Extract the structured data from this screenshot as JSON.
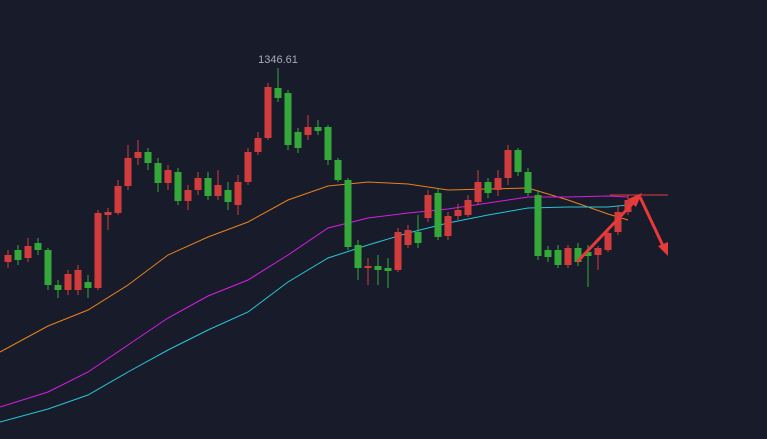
{
  "chart_data": {
    "type": "candlestick",
    "up_color": "#d23c3c",
    "down_color": "#35a83a",
    "open": [
      1269.0,
      1273.8,
      1270.6,
      1276.6,
      1273.8,
      1259.8,
      1257.8,
      1257.8,
      1261.0,
      1258.6,
      1287.8,
      1288.6,
      1299.4,
      1310.6,
      1313.0,
      1308.6,
      1300.6,
      1305.0,
      1293.4,
      1297.8,
      1302.6,
      1295.4,
      1297.8,
      1291.8,
      1301.0,
      1313.0,
      1318.6,
      1338.6,
      1336.6,
      1321.0,
      1319.8,
      1323.0,
      1323.0,
      1309.8,
      1301.8,
      1275.8,
      1266.6,
      1267.4,
      1266.6,
      1265.8,
      1275.8,
      1281.0,
      1286.6,
      1296.6,
      1279.4,
      1287.4,
      1287.8,
      1293.0,
      1301.0,
      1297.8,
      1302.6,
      1313.8,
      1305.0,
      1295.8,
      1273.8,
      1273.8,
      1267.8,
      1274.6,
      1273.0,
      1271.8,
      1273.8,
      1281.0,
      1289.0
    ],
    "close": [
      1271.8,
      1269.8,
      1275.4,
      1273.8,
      1259.8,
      1257.8,
      1264.2,
      1265.8,
      1258.6,
      1288.6,
      1289.0,
      1299.4,
      1310.6,
      1313.0,
      1308.6,
      1300.6,
      1305.8,
      1293.4,
      1297.8,
      1302.6,
      1295.4,
      1299.8,
      1293.0,
      1301.0,
      1313.0,
      1318.6,
      1339.0,
      1334.6,
      1315.8,
      1314.6,
      1323.0,
      1321.4,
      1309.8,
      1301.8,
      1275.0,
      1266.6,
      1267.4,
      1265.8,
      1265.4,
      1281.0,
      1281.8,
      1276.6,
      1295.8,
      1279.0,
      1287.4,
      1289.8,
      1293.8,
      1301.0,
      1296.6,
      1302.6,
      1313.8,
      1305.0,
      1296.6,
      1271.4,
      1271.0,
      1267.8,
      1274.6,
      1269.0,
      1271.4,
      1274.6,
      1280.6,
      1289.0,
      1293.8
    ],
    "high": [
      1273.8,
      1275.8,
      1278.6,
      1278.6,
      1274.6,
      1261.8,
      1265.8,
      1267.8,
      1263.8,
      1289.8,
      1290.6,
      1301.8,
      1315.8,
      1317.8,
      1314.6,
      1310.6,
      1307.8,
      1306.6,
      1299.8,
      1305.0,
      1305.0,
      1305.8,
      1301.0,
      1303.8,
      1314.6,
      1321.0,
      1340.6,
      1346.61,
      1337.8,
      1322.6,
      1327.8,
      1325.8,
      1323.8,
      1310.6,
      1302.6,
      1277.8,
      1270.6,
      1271.8,
      1270.6,
      1282.6,
      1283.8,
      1287.8,
      1297.8,
      1298.6,
      1289.0,
      1292.2,
      1295.8,
      1305.8,
      1302.6,
      1305.8,
      1315.8,
      1314.6,
      1306.6,
      1297.8,
      1275.4,
      1275.8,
      1275.8,
      1276.6,
      1275.8,
      1275.4,
      1282.6,
      1291.8,
      1295.8
    ],
    "low": [
      1266.6,
      1267.8,
      1269.0,
      1271.8,
      1257.8,
      1254.6,
      1255.8,
      1255.8,
      1254.6,
      1257.8,
      1281.8,
      1287.8,
      1297.8,
      1307.8,
      1305.8,
      1297.0,
      1297.8,
      1291.8,
      1289.8,
      1295.8,
      1293.8,
      1293.8,
      1289.8,
      1287.8,
      1299.8,
      1311.8,
      1317.8,
      1333.0,
      1313.8,
      1312.6,
      1317.8,
      1319.8,
      1307.8,
      1301.0,
      1273.8,
      1261.8,
      1259.8,
      1259.8,
      1258.6,
      1265.0,
      1274.6,
      1274.6,
      1285.0,
      1277.8,
      1277.8,
      1285.8,
      1287.0,
      1291.8,
      1294.6,
      1295.4,
      1299.8,
      1303.4,
      1295.4,
      1269.8,
      1269.0,
      1266.6,
      1266.6,
      1267.4,
      1259.0,
      1265.8,
      1273.0,
      1279.8,
      1287.8
    ],
    "lines": [
      {
        "color": "#e8821e",
        "x": [
          0,
          4,
          8,
          12,
          16,
          20,
          24,
          28,
          32,
          36,
          40,
          44,
          48,
          52,
          56,
          60,
          62
        ],
        "values": [
          1233.0,
          1243.4,
          1249.8,
          1259.8,
          1271.8,
          1279.0,
          1285.0,
          1293.8,
          1299.4,
          1301.0,
          1300.2,
          1297.8,
          1298.2,
          1298.6,
          1293.8,
          1288.2,
          1285.8
        ]
      },
      {
        "color": "#d81ee0",
        "x": [
          0,
          4,
          8,
          12,
          16,
          20,
          24,
          28,
          32,
          36,
          40,
          44,
          48,
          52,
          56,
          60,
          62
        ],
        "values": [
          1211.0,
          1217.0,
          1225.0,
          1235.8,
          1246.6,
          1255.4,
          1261.8,
          1271.8,
          1282.6,
          1286.6,
          1288.6,
          1290.2,
          1292.6,
          1295.0,
          1295.0,
          1295.4,
          1295.0
        ]
      },
      {
        "color": "#26c6d8",
        "x": [
          0,
          4,
          8,
          12,
          16,
          20,
          24,
          28,
          32,
          36,
          40,
          44,
          48,
          52,
          56,
          60,
          62
        ],
        "values": [
          1205.0,
          1210.2,
          1215.8,
          1225.0,
          1233.8,
          1241.8,
          1249.0,
          1261.0,
          1270.6,
          1275.8,
          1280.6,
          1284.6,
          1287.8,
          1290.6,
          1291.0,
          1291.0,
          1291.8
        ]
      }
    ],
    "ylim": [
      1198.2,
      1373.8
    ]
  }
}
